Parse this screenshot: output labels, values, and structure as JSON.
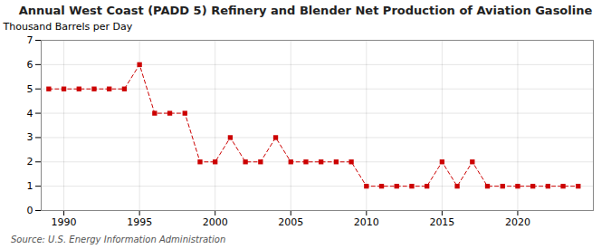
{
  "chart_data": {
    "type": "line",
    "title": "Annual West Coast (PADD 5) Refinery and Blender Net Production of Aviation Gasoline",
    "ylabel": "Thousand Barrels per Day",
    "source": "Source: U.S. Energy Information Administration",
    "x": [
      1989,
      1990,
      1991,
      1992,
      1993,
      1994,
      1995,
      1996,
      1997,
      1998,
      1999,
      2000,
      2001,
      2002,
      2003,
      2004,
      2005,
      2006,
      2007,
      2008,
      2009,
      2010,
      2011,
      2012,
      2013,
      2014,
      2015,
      2016,
      2017,
      2018,
      2019,
      2020,
      2021,
      2022,
      2023,
      2024
    ],
    "values": [
      5,
      5,
      5,
      5,
      5,
      5,
      6,
      4,
      4,
      4,
      2,
      2,
      3,
      2,
      2,
      3,
      2,
      2,
      2,
      2,
      2,
      1,
      1,
      1,
      1,
      1,
      2,
      1,
      2,
      1,
      1,
      1,
      1,
      1,
      1,
      1
    ],
    "color": "#cc0000",
    "line_style": "dashed",
    "marker": "square",
    "xlim": [
      1988.5,
      2025
    ],
    "xticks": [
      1990,
      1995,
      2000,
      2005,
      2010,
      2015,
      2020
    ],
    "ylim": [
      0,
      7
    ],
    "yticks": [
      0,
      1,
      2,
      3,
      4,
      5,
      6,
      7
    ],
    "grid": true
  }
}
